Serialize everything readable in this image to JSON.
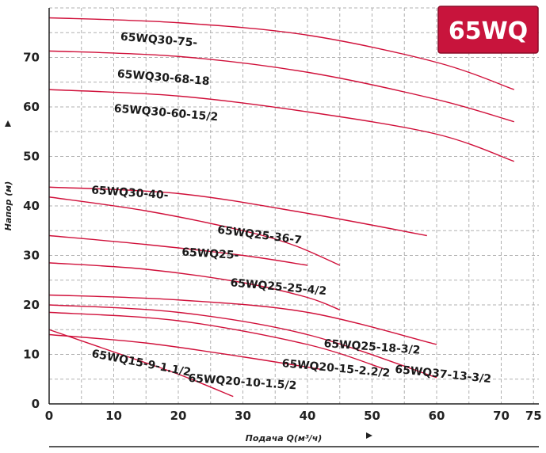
{
  "chart_data": {
    "type": "line",
    "title": "",
    "badge": "65WQ",
    "xlabel": "Подача Q(м³/ч)",
    "ylabel": "Напор (м)",
    "xlim": [
      0,
      75
    ],
    "ylim": [
      0,
      80
    ],
    "x_ticks": [
      0,
      10,
      20,
      30,
      40,
      50,
      60,
      70,
      75
    ],
    "y_ticks": [
      0,
      10,
      20,
      30,
      40,
      50,
      60,
      70
    ],
    "grid": true,
    "colors": {
      "curve": "#d0103a",
      "badge_bg": "#c8143c",
      "grid": "#b0b0b0"
    },
    "series": [
      {
        "name": "65WQ30-75-",
        "points": [
          [
            0,
            78
          ],
          [
            20,
            77
          ],
          [
            40,
            74.5
          ],
          [
            60,
            69
          ],
          [
            72,
            63.5
          ]
        ],
        "label_at": [
          11,
          73.5
        ]
      },
      {
        "name": "65WQ30-68-18",
        "points": [
          [
            0,
            71.3
          ],
          [
            20,
            70.2
          ],
          [
            40,
            67
          ],
          [
            60,
            61.5
          ],
          [
            72,
            57
          ]
        ],
        "label_at": [
          10.5,
          66
        ]
      },
      {
        "name": "65WQ30-60-15/2",
        "points": [
          [
            0,
            63.5
          ],
          [
            20,
            62.2
          ],
          [
            40,
            59
          ],
          [
            60,
            54.5
          ],
          [
            72,
            49
          ]
        ],
        "label_at": [
          10,
          59
        ]
      },
      {
        "name": "65WQ30-40-",
        "points": [
          [
            0,
            43.8
          ],
          [
            20,
            42.5
          ],
          [
            40,
            38.5
          ],
          [
            58.5,
            34
          ]
        ],
        "label_at": [
          6.5,
          42.5
        ]
      },
      {
        "name": "65WQ25-36-7",
        "points": [
          [
            0,
            41.8
          ],
          [
            15,
            39
          ],
          [
            30,
            35
          ],
          [
            38,
            32
          ],
          [
            45,
            28
          ]
        ],
        "label_at": [
          26,
          34.5
        ]
      },
      {
        "name": "65WQ25-",
        "points": [
          [
            0,
            34
          ],
          [
            15,
            32.2
          ],
          [
            30,
            30
          ],
          [
            40,
            28
          ]
        ],
        "label_at": [
          20.5,
          30
        ]
      },
      {
        "name": "65WQ25-25-4/2",
        "points": [
          [
            0,
            28.5
          ],
          [
            15,
            27.2
          ],
          [
            30,
            24.5
          ],
          [
            40,
            21.5
          ],
          [
            45,
            19
          ]
        ],
        "label_at": [
          28,
          23.8
        ]
      },
      {
        "name": "65WQ25-18-3/2",
        "points": [
          [
            0,
            22
          ],
          [
            20,
            21
          ],
          [
            40,
            18.5
          ],
          [
            60,
            12
          ]
        ],
        "label_at": [
          42.5,
          11.5
        ]
      },
      {
        "name": "65WQ37-13-3/2",
        "points": [
          [
            0,
            20
          ],
          [
            20,
            18.5
          ],
          [
            40,
            14
          ],
          [
            60,
            5.3
          ]
        ],
        "label_at": [
          53.5,
          6.3
        ]
      },
      {
        "name": "65WQ20-15-2.2/2",
        "points": [
          [
            0,
            18.5
          ],
          [
            20,
            16.8
          ],
          [
            40,
            12
          ],
          [
            52,
            7
          ]
        ],
        "label_at": [
          36,
          7.5
        ]
      },
      {
        "name": "65WQ20-10-1.5/2",
        "points": [
          [
            0,
            14
          ],
          [
            15,
            12.3
          ],
          [
            30,
            9.5
          ],
          [
            42,
            7
          ]
        ],
        "label_at": [
          21.5,
          4.5
        ]
      },
      {
        "name": "65WQ15-9-1.1/2",
        "points": [
          [
            0,
            15
          ],
          [
            10,
            10.5
          ],
          [
            20,
            6
          ],
          [
            28.5,
            1.5
          ]
        ],
        "label_at": [
          6.5,
          9.5
        ]
      }
    ]
  }
}
